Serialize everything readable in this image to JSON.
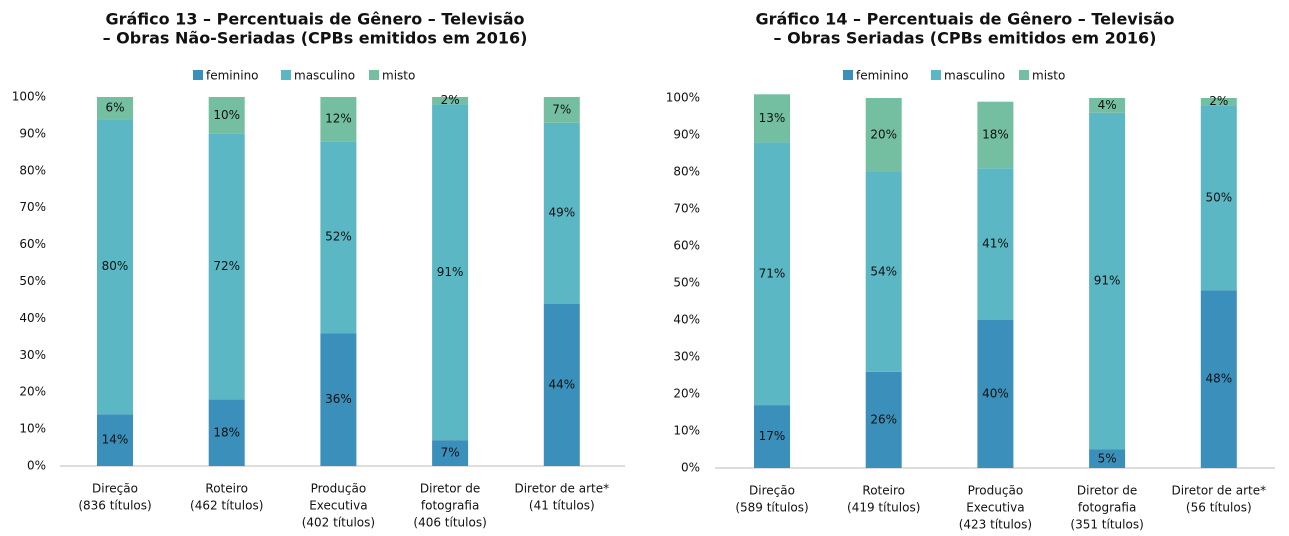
{
  "chart_data": [
    {
      "type": "bar",
      "stacked": true,
      "title": [
        "Gráfico 13 – Percentuais de Gênero – Televisão",
        "– Obras Não-Seriadas (CPBs emitidos em 2016)"
      ],
      "categories": [
        [
          "Direção",
          "(836 títulos)"
        ],
        [
          "Roteiro",
          "(462 títulos)"
        ],
        [
          "Produção",
          "Executiva",
          "(402 títulos)"
        ],
        [
          "Diretor de",
          "fotografia",
          "(406 títulos)"
        ],
        [
          "Diretor de arte*",
          "(41 títulos)"
        ]
      ],
      "series": [
        {
          "name": "feminino",
          "color": "#3a90bb",
          "values": [
            14,
            18,
            36,
            7,
            44
          ],
          "value_labels": [
            "14%",
            "18%",
            "36%",
            "7%",
            "44%"
          ]
        },
        {
          "name": "masculino",
          "color": "#5cb7c4",
          "values": [
            80,
            72,
            52,
            91,
            49
          ],
          "value_labels": [
            "80%",
            "72%",
            "52%",
            "91%",
            "49%"
          ]
        },
        {
          "name": "misto",
          "color": "#74bfa2",
          "values": [
            6,
            10,
            12,
            2,
            7
          ],
          "value_labels": [
            "6%",
            "10%",
            "12%",
            "2%",
            "7%"
          ]
        }
      ],
      "ylim": [
        0,
        100
      ],
      "yticks": [
        {
          "value": 0,
          "label": "0%"
        },
        {
          "value": 10,
          "label": "10%"
        },
        {
          "value": 20,
          "label": "20%"
        },
        {
          "value": 30,
          "label": "30%"
        },
        {
          "value": 40,
          "label": "40%"
        },
        {
          "value": 50,
          "label": "50%"
        },
        {
          "value": 60,
          "label": "60%"
        },
        {
          "value": 70,
          "label": "70%"
        },
        {
          "value": 80,
          "label": "80%"
        },
        {
          "value": 90,
          "label": "90%"
        },
        {
          "value": 100,
          "label": "100%"
        }
      ],
      "legend": "top"
    },
    {
      "type": "bar",
      "stacked": true,
      "title": [
        "Gráfico 14 – Percentuais de Gênero – Televisão",
        "– Obras Seriadas (CPBs emitidos em 2016)"
      ],
      "categories": [
        [
          "Direção",
          "(589 títulos)"
        ],
        [
          "Roteiro",
          "(419 títulos)"
        ],
        [
          "Produção",
          "Executiva",
          "(423 títulos)"
        ],
        [
          "Diretor de",
          "fotografia",
          "(351 títulos)"
        ],
        [
          "Diretor de arte*",
          "(56 títulos)"
        ]
      ],
      "series": [
        {
          "name": "feminino",
          "color": "#3a90bb",
          "values": [
            17,
            26,
            40,
            5,
            48
          ],
          "value_labels": [
            "17%",
            "26%",
            "40%",
            "5%",
            "48%"
          ]
        },
        {
          "name": "masculino",
          "color": "#5cb7c4",
          "values": [
            71,
            54,
            41,
            91,
            50
          ],
          "value_labels": [
            "71%",
            "54%",
            "41%",
            "91%",
            "50%"
          ]
        },
        {
          "name": "misto",
          "color": "#74bfa2",
          "values": [
            13,
            20,
            18,
            4,
            2
          ],
          "value_labels": [
            "13%",
            "20%",
            "18%",
            "4%",
            "2%"
          ]
        }
      ],
      "ylim": [
        0,
        100
      ],
      "yticks": [
        {
          "value": 0,
          "label": "0%"
        },
        {
          "value": 10,
          "label": "10%"
        },
        {
          "value": 20,
          "label": "20%"
        },
        {
          "value": 30,
          "label": "30%"
        },
        {
          "value": 40,
          "label": "40%"
        },
        {
          "value": 50,
          "label": "50%"
        },
        {
          "value": 60,
          "label": "60%"
        },
        {
          "value": 70,
          "label": "70%"
        },
        {
          "value": 80,
          "label": "80%"
        },
        {
          "value": 90,
          "label": "90%"
        },
        {
          "value": 100,
          "label": "100%"
        }
      ],
      "legend": "top"
    }
  ]
}
